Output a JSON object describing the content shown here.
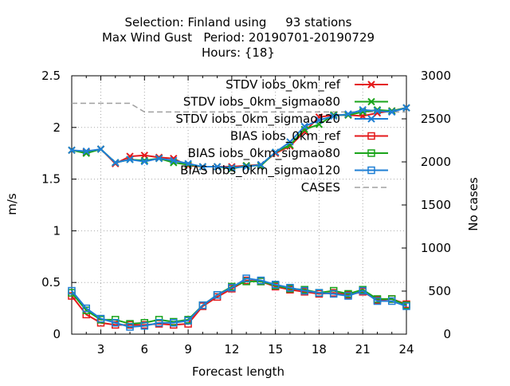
{
  "chart_data": {
    "type": "line",
    "title_lines": [
      "Selection: Finland using     93 stations",
      "Max Wind Gust   Period: 20190701-20190729",
      "Hours: {18}"
    ],
    "xlabel": "Forecast length",
    "ylabel": "m/s",
    "y2label": "No cases",
    "xlim": [
      1,
      24
    ],
    "ylim": [
      0,
      2.5
    ],
    "y2lim": [
      0,
      3000
    ],
    "xticks": [
      3,
      6,
      9,
      12,
      15,
      18,
      21,
      24
    ],
    "yticks": [
      0,
      0.5,
      1,
      1.5,
      2,
      2.5
    ],
    "y2ticks": [
      0,
      500,
      1000,
      1500,
      2000,
      2500,
      3000
    ],
    "grid": true,
    "legend_position": "top-right",
    "x": [
      1,
      2,
      3,
      4,
      5,
      6,
      7,
      8,
      9,
      10,
      11,
      12,
      13,
      14,
      15,
      16,
      17,
      18,
      19,
      20,
      21,
      22,
      23,
      24
    ],
    "series": [
      {
        "name": "STDV iobs_0km_ref",
        "color": "#e41a1c",
        "marker": "x",
        "values": [
          1.78,
          1.76,
          1.79,
          1.65,
          1.72,
          1.73,
          1.71,
          1.7,
          1.63,
          1.62,
          1.62,
          1.62,
          1.63,
          1.64,
          1.75,
          1.82,
          1.96,
          2.1,
          2.12,
          2.12,
          2.11,
          2.14,
          2.16,
          2.19
        ]
      },
      {
        "name": "STDV iobs_0km_sigmao80",
        "color": "#1aa41a",
        "marker": "x",
        "values": [
          1.78,
          1.75,
          1.79,
          1.66,
          1.69,
          1.68,
          1.7,
          1.66,
          1.64,
          1.62,
          1.62,
          1.6,
          1.63,
          1.63,
          1.76,
          1.83,
          1.98,
          2.03,
          2.12,
          2.12,
          2.15,
          2.17,
          2.16,
          2.19
        ]
      },
      {
        "name": "STDV iobs_0km_sigmao120",
        "color": "#1f7fd4",
        "marker": "x",
        "values": [
          1.78,
          1.77,
          1.79,
          1.66,
          1.69,
          1.67,
          1.7,
          1.68,
          1.65,
          1.62,
          1.62,
          1.61,
          1.62,
          1.64,
          1.76,
          1.86,
          2.01,
          2.07,
          2.11,
          2.13,
          2.17,
          2.16,
          2.15,
          2.19
        ]
      },
      {
        "name": "BIAS iobs_0km_ref",
        "color": "#e41a1c",
        "marker": "square",
        "values": [
          0.37,
          0.19,
          0.11,
          0.09,
          0.09,
          0.09,
          0.1,
          0.09,
          0.1,
          0.27,
          0.36,
          0.44,
          0.52,
          0.51,
          0.46,
          0.43,
          0.41,
          0.39,
          0.4,
          0.38,
          0.41,
          0.33,
          0.34,
          0.29
        ]
      },
      {
        "name": "BIAS iobs_0km_sigmao80",
        "color": "#1aa41a",
        "marker": "square",
        "values": [
          0.4,
          0.23,
          0.14,
          0.14,
          0.1,
          0.11,
          0.14,
          0.12,
          0.14,
          0.28,
          0.38,
          0.46,
          0.51,
          0.51,
          0.47,
          0.44,
          0.43,
          0.4,
          0.42,
          0.39,
          0.43,
          0.34,
          0.34,
          0.28
        ]
      },
      {
        "name": "BIAS iobs_0km_sigmao120",
        "color": "#1f7fd4",
        "marker": "square",
        "values": [
          0.42,
          0.25,
          0.15,
          0.11,
          0.07,
          0.08,
          0.11,
          0.11,
          0.13,
          0.28,
          0.38,
          0.45,
          0.54,
          0.52,
          0.48,
          0.45,
          0.42,
          0.4,
          0.39,
          0.37,
          0.42,
          0.32,
          0.32,
          0.27
        ]
      }
    ],
    "cases": {
      "name": "CASES",
      "color": "#a0a0a0",
      "axis": "y2",
      "values": [
        2680,
        2680,
        2680,
        2680,
        2680,
        2580,
        2580,
        2580,
        2580,
        2580,
        2580,
        2580,
        2580,
        2580,
        2580,
        2580,
        2580,
        2580,
        2580,
        2580,
        2580,
        2580,
        2580,
        2580
      ]
    }
  }
}
